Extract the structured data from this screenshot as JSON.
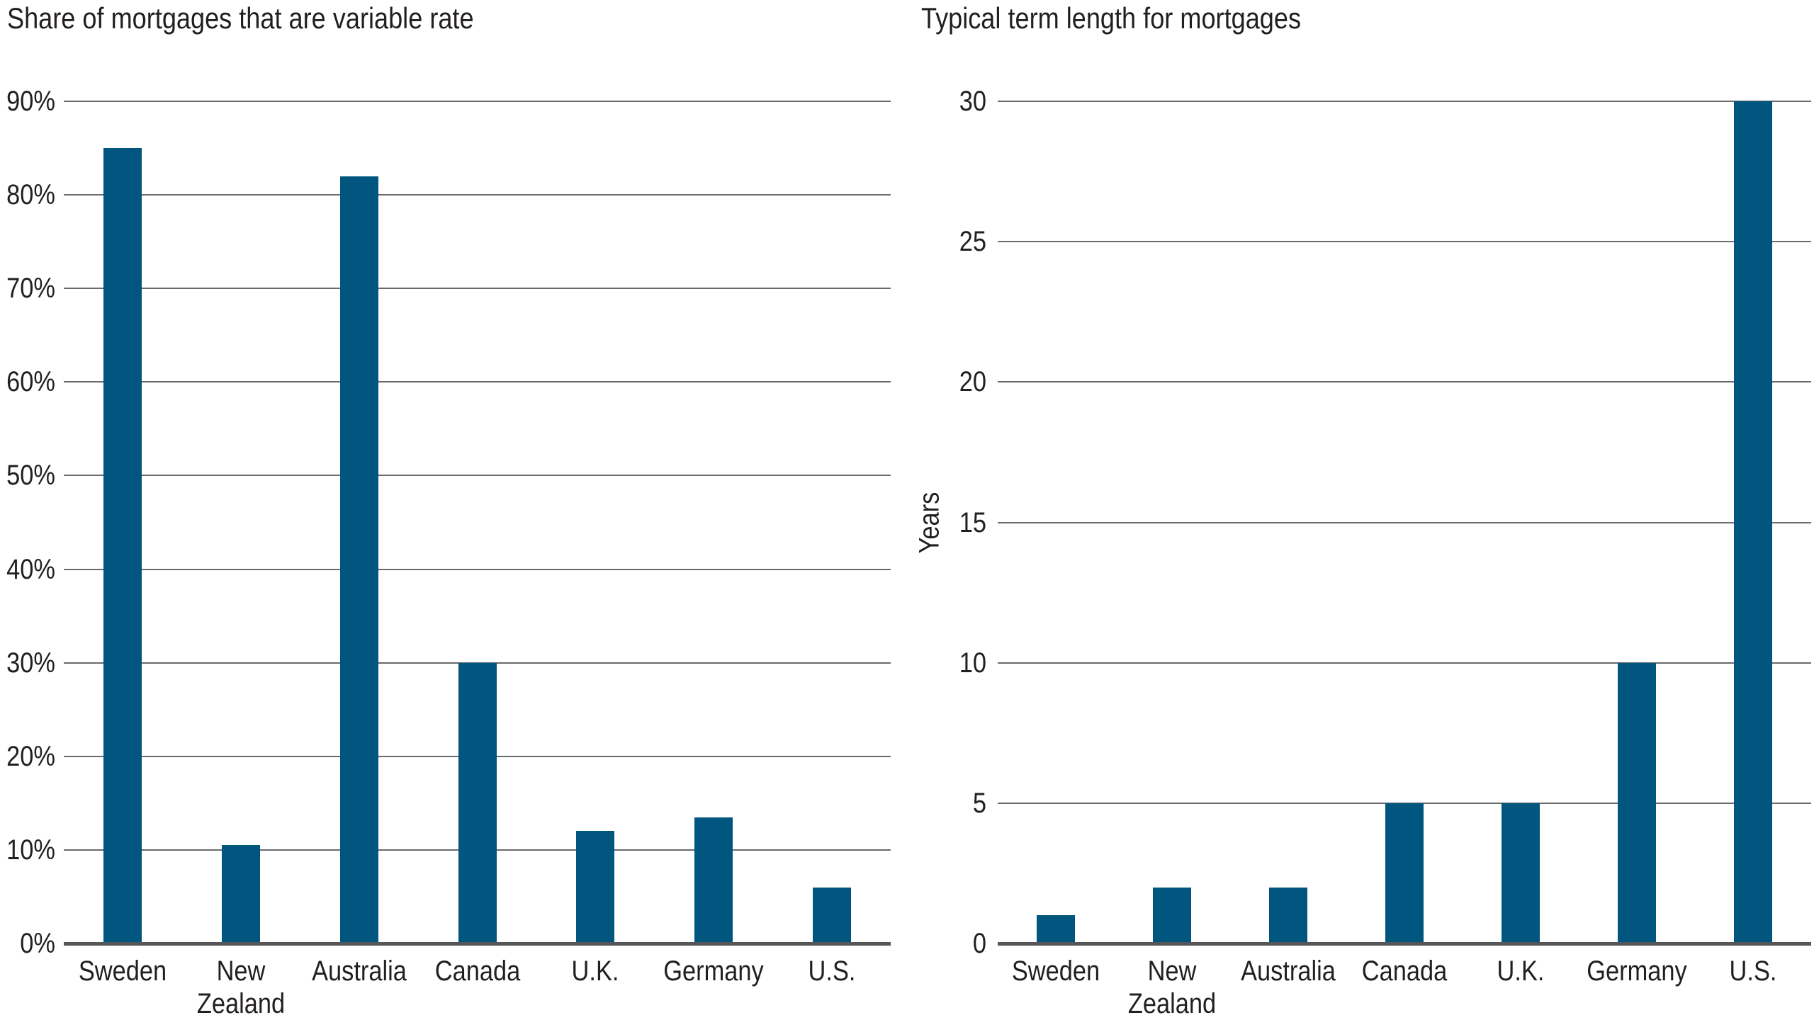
{
  "figure": {
    "background": "#ffffff",
    "text_color": "#231f20"
  },
  "colors": {
    "bar": "#00567e",
    "gridline": "#6a6b6e",
    "baseline": "#54565a"
  },
  "chart_data": [
    {
      "type": "bar",
      "title": "Share of mortgages that are variable rate",
      "categories": [
        "Sweden",
        "New Zealand",
        "Australia",
        "Canada",
        "U.K.",
        "Germany",
        "U.S."
      ],
      "category_lines": [
        [
          "Sweden"
        ],
        [
          "New",
          "Zealand"
        ],
        [
          "Australia"
        ],
        [
          "Canada"
        ],
        [
          "U.K."
        ],
        [
          "Germany"
        ],
        [
          "U.S."
        ]
      ],
      "values": [
        85,
        10.5,
        82,
        30,
        12,
        13.5,
        6
      ],
      "xlabel": "",
      "ylabel": "",
      "ylim": [
        0,
        90
      ],
      "ytick_step": 10,
      "ytick_labels": [
        "0%",
        "10%",
        "20%",
        "30%",
        "40%",
        "50%",
        "60%",
        "70%",
        "80%",
        "90%"
      ],
      "grid": "horizontal",
      "legend": "none"
    },
    {
      "type": "bar",
      "title": "Typical term length for mortgages",
      "categories": [
        "Sweden",
        "New Zealand",
        "Australia",
        "Canada",
        "U.K.",
        "Germany",
        "U.S."
      ],
      "category_lines": [
        [
          "Sweden"
        ],
        [
          "New",
          "Zealand"
        ],
        [
          "Australia"
        ],
        [
          "Canada"
        ],
        [
          "U.K."
        ],
        [
          "Germany"
        ],
        [
          "U.S."
        ]
      ],
      "values": [
        1,
        2,
        2,
        5,
        5,
        10,
        30
      ],
      "xlabel": "",
      "ylabel": "Years",
      "ylim": [
        0,
        30
      ],
      "ytick_step": 5,
      "ytick_labels": [
        "0",
        "5",
        "10",
        "15",
        "20",
        "25",
        "30"
      ],
      "grid": "horizontal",
      "legend": "none"
    }
  ]
}
